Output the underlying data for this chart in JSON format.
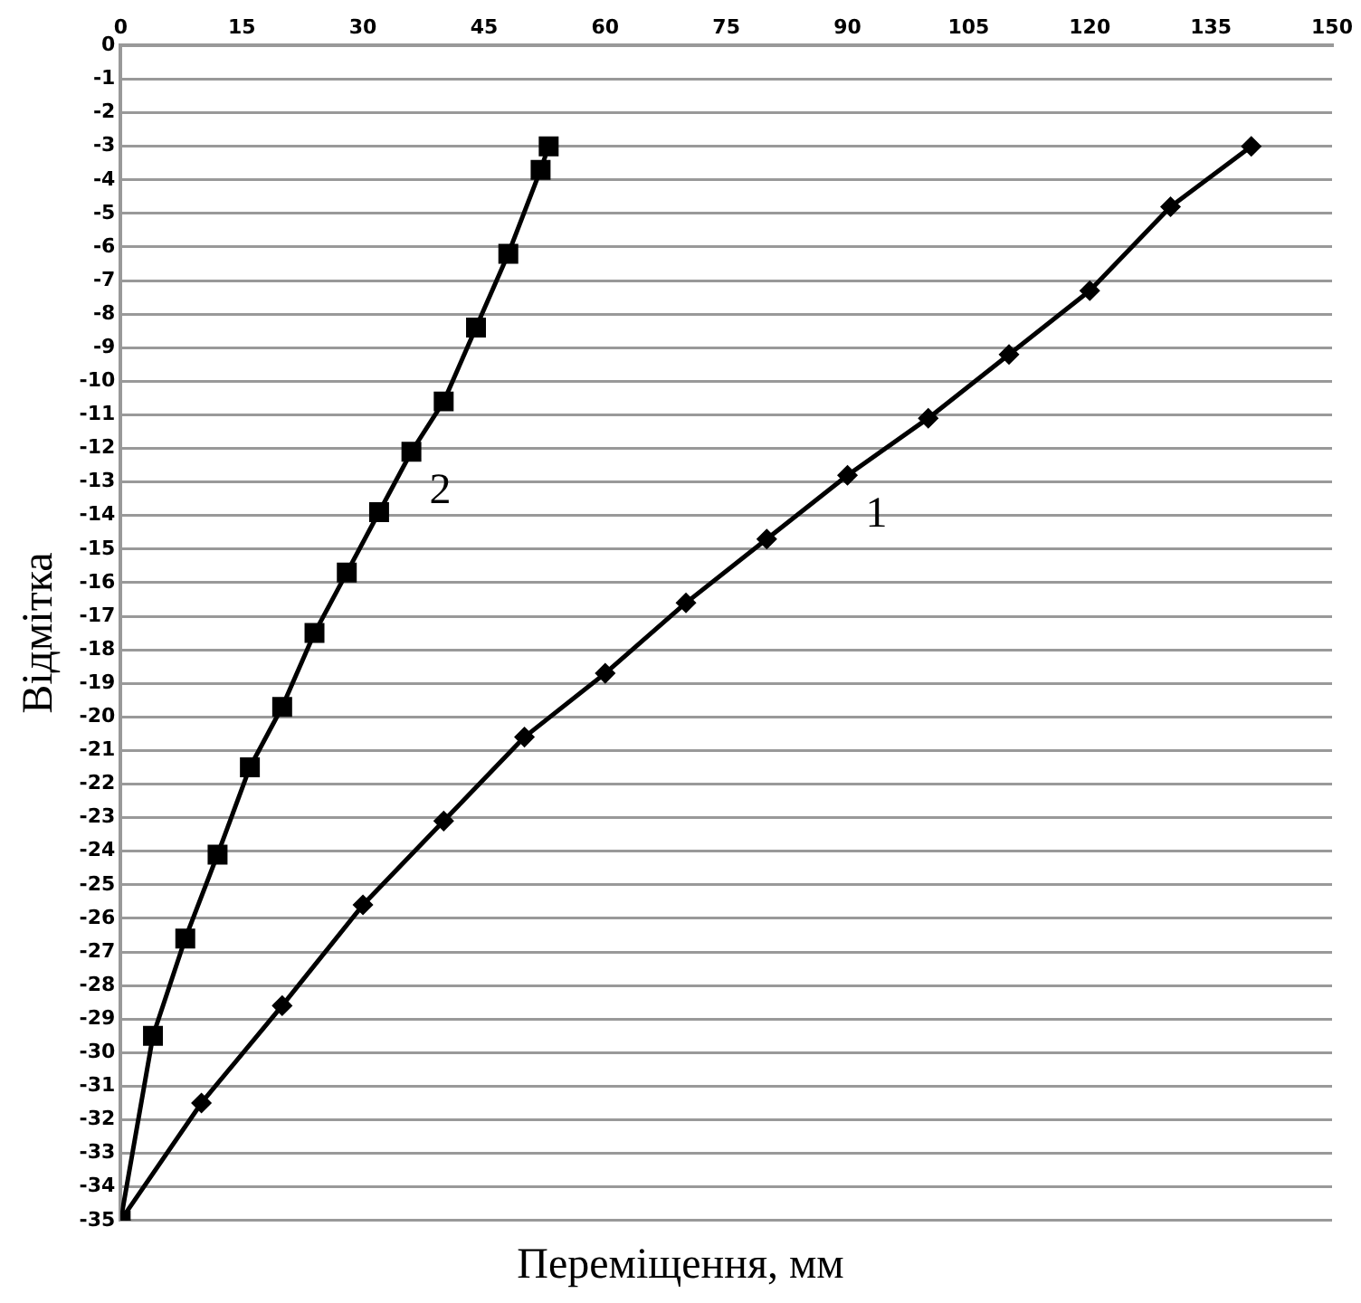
{
  "chart_data": {
    "type": "line",
    "xlabel": "Переміщення, мм",
    "ylabel": "Відмітка",
    "xlim": [
      0,
      150
    ],
    "xticks": [
      0,
      15,
      30,
      45,
      60,
      75,
      90,
      105,
      120,
      135,
      150
    ],
    "ylim": [
      -35,
      0
    ],
    "yticks": [
      0,
      -1,
      -2,
      -3,
      -4,
      -5,
      -6,
      -7,
      -8,
      -9,
      -10,
      -11,
      -12,
      -13,
      -14,
      -15,
      -16,
      -17,
      -18,
      -19,
      -20,
      -21,
      -22,
      -23,
      -24,
      -25,
      -26,
      -27,
      -28,
      -29,
      -30,
      -31,
      -32,
      -33,
      -34,
      -35
    ],
    "grid": "y",
    "legend": false,
    "series": [
      {
        "name": "1",
        "color": "#000000",
        "marker": "diamond",
        "x": [
          140,
          130,
          120,
          110,
          100,
          90,
          80,
          70,
          60,
          50,
          40,
          30,
          20,
          10,
          0
        ],
        "values": [
          -3,
          -4.8,
          -7.3,
          -9.2,
          -11.1,
          -12.8,
          -14.7,
          -16.6,
          -18.7,
          -20.6,
          -23.1,
          -25.6,
          -28.6,
          -31.5,
          -35
        ]
      },
      {
        "name": "2",
        "color": "#000000",
        "marker": "square",
        "x": [
          53,
          52,
          48,
          44,
          40,
          36,
          32,
          28,
          24,
          20,
          16,
          12,
          8,
          4,
          0
        ],
        "values": [
          -3,
          -3.7,
          -6.2,
          -8.4,
          -10.6,
          -12.1,
          -13.9,
          -15.7,
          -17.5,
          -19.7,
          -21.5,
          -24.1,
          -26.6,
          -29.5,
          -35
        ]
      }
    ]
  }
}
